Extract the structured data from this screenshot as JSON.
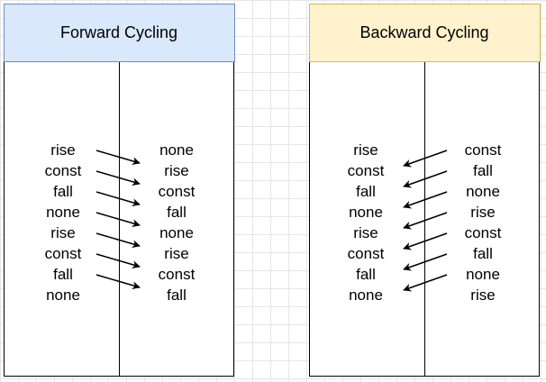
{
  "forward": {
    "title": "Forward Cycling",
    "left_column": [
      "rise",
      "const",
      "fall",
      "none",
      "rise",
      "const",
      "fall",
      "none"
    ],
    "right_column": [
      "none",
      "rise",
      "const",
      "fall",
      "none",
      "rise",
      "const",
      "fall"
    ],
    "header_fill": "#dae8fc",
    "header_border": "#6c8ebf"
  },
  "backward": {
    "title": "Backward Cycling",
    "left_column": [
      "rise",
      "const",
      "fall",
      "none",
      "rise",
      "const",
      "fall",
      "none"
    ],
    "right_column": [
      "const",
      "fall",
      "none",
      "rise",
      "const",
      "fall",
      "none",
      "rise"
    ],
    "header_fill": "#fff2cc",
    "header_border": "#d6b656"
  }
}
